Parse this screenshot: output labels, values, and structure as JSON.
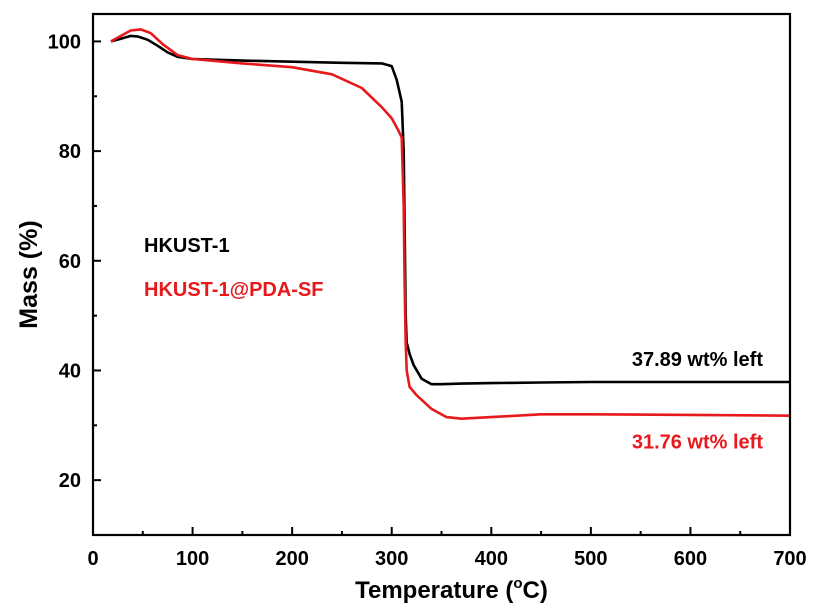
{
  "chart_data": {
    "type": "line",
    "xlabel": "Temperature (",
    "xlabel_sup": "o",
    "xlabel_end": "C)",
    "ylabel": "Mass (%)",
    "xlim": [
      0,
      700
    ],
    "ylim": [
      10,
      105
    ],
    "grid": false,
    "xticks": [
      0,
      100,
      200,
      300,
      400,
      500,
      600,
      700
    ],
    "yticks": [
      20,
      40,
      60,
      80,
      100
    ],
    "series": [
      {
        "name": "HKUST-1",
        "color": "#000000",
        "x": [
          18,
          28,
          38,
          45,
          55,
          65,
          75,
          85,
          100,
          150,
          200,
          250,
          290,
          300,
          305,
          310,
          312,
          313,
          314,
          315,
          316,
          318,
          322,
          330,
          340,
          350,
          370,
          400,
          450,
          500,
          600,
          700
        ],
        "y": [
          100,
          100.5,
          101,
          100.9,
          100.3,
          99.2,
          98,
          97.2,
          96.8,
          96.5,
          96.3,
          96.1,
          96,
          95.5,
          93,
          89,
          80,
          65,
          50,
          45,
          44.5,
          43,
          41,
          38.5,
          37.5,
          37.5,
          37.6,
          37.7,
          37.8,
          37.89,
          37.89,
          37.89
        ],
        "annotation": "37.89 wt% left"
      },
      {
        "name": "HKUST-1@PDA-SF",
        "color": "#e8191c",
        "x": [
          18,
          28,
          38,
          48,
          58,
          70,
          85,
          100,
          150,
          200,
          240,
          270,
          290,
          300,
          306,
          310,
          312,
          313,
          314,
          315,
          318,
          325,
          340,
          355,
          370,
          400,
          450,
          500,
          600,
          700
        ],
        "y": [
          100,
          101,
          102,
          102.2,
          101.5,
          99.5,
          97.5,
          96.8,
          96,
          95.3,
          94,
          91.5,
          88,
          86,
          84,
          82.5,
          70,
          55,
          45,
          40,
          37,
          35.5,
          33,
          31.5,
          31.2,
          31.5,
          32,
          32,
          31.9,
          31.76
        ],
        "annotation": "31.76 wt% left"
      }
    ]
  }
}
